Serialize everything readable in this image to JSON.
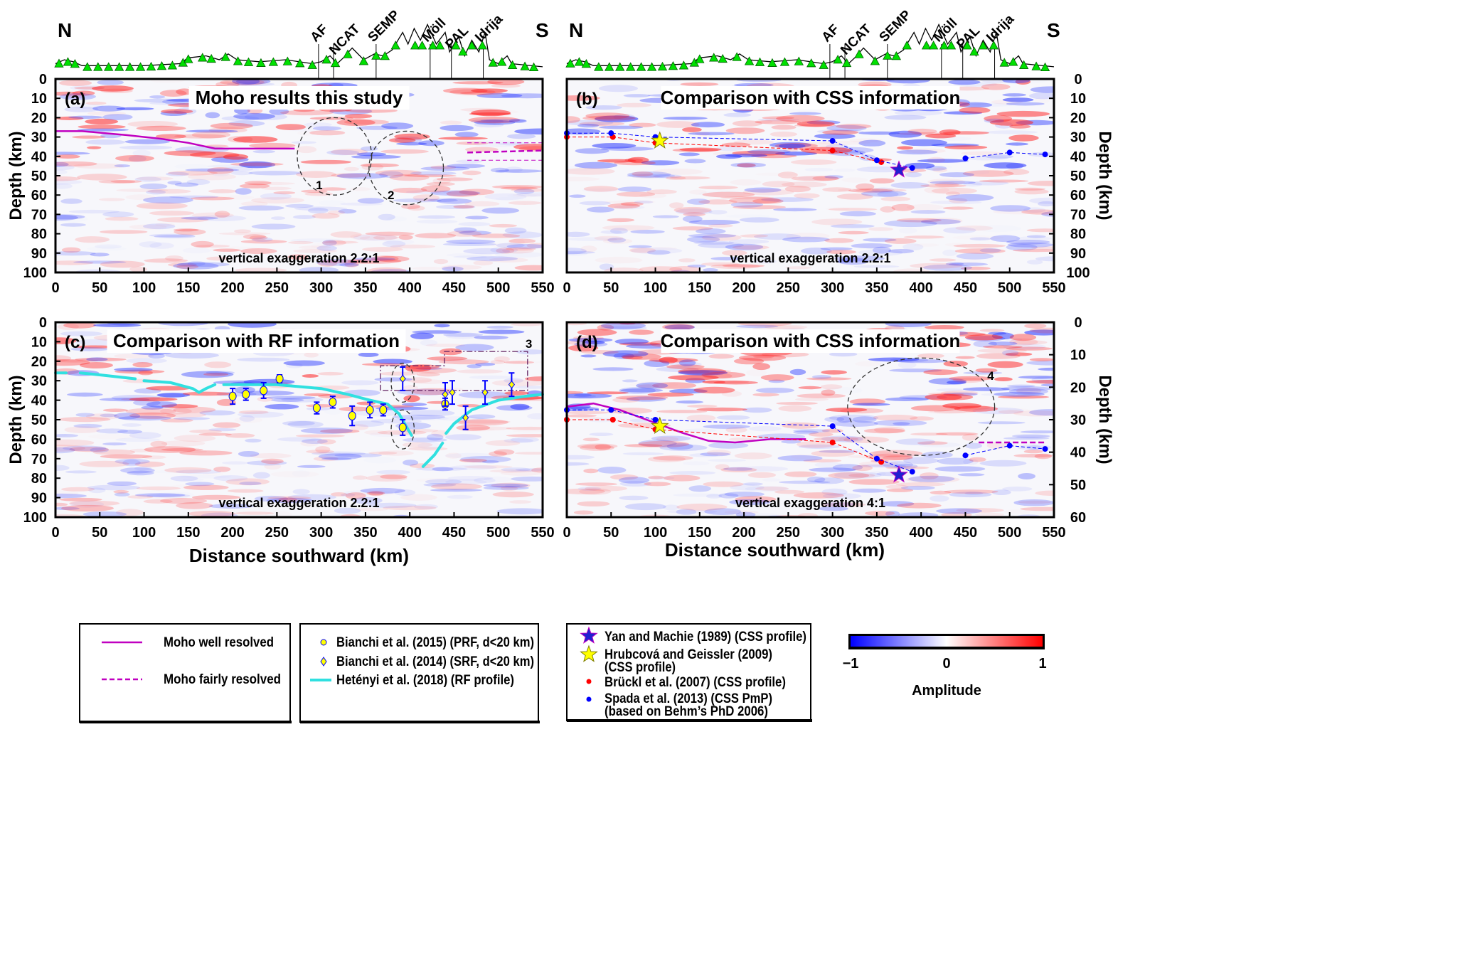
{
  "colors": {
    "moho": "#c000c0",
    "hetenyi": "#30e0e0",
    "bruckl": "#ff0000",
    "spada": "#0000ff",
    "yan": "#2020d0",
    "hrubcova": "#ffff00",
    "bianchi_fill": "#ffff00",
    "errorbar": "#0000ff",
    "station": "#00e000"
  },
  "profile": {
    "north_label": "N",
    "south_label": "S",
    "geology_labels": [
      {
        "label": "AF",
        "km": 297
      },
      {
        "label": "NCAT",
        "km": 314
      },
      {
        "label": "SEMP",
        "km": 362
      },
      {
        "label": "Möll",
        "km": 423
      },
      {
        "label": "PAL",
        "km": 447
      },
      {
        "label": "Idrija",
        "km": 483
      }
    ],
    "elevation_km_rel": [
      [
        0,
        0.1
      ],
      [
        10,
        0.2
      ],
      [
        20,
        0.15
      ],
      [
        30,
        0.05
      ],
      [
        60,
        0.05
      ],
      [
        100,
        0.05
      ],
      [
        140,
        0.1
      ],
      [
        150,
        0.25
      ],
      [
        170,
        0.3
      ],
      [
        185,
        0.2
      ],
      [
        195,
        0.35
      ],
      [
        205,
        0.2
      ],
      [
        230,
        0.15
      ],
      [
        260,
        0.2
      ],
      [
        290,
        0.1
      ],
      [
        300,
        0.15
      ],
      [
        310,
        0.3
      ],
      [
        318,
        0.1
      ],
      [
        325,
        0.25
      ],
      [
        335,
        0.5
      ],
      [
        348,
        0.2
      ],
      [
        360,
        0.35
      ],
      [
        370,
        0.3
      ],
      [
        380,
        0.45
      ],
      [
        392,
        0.9
      ],
      [
        398,
        0.6
      ],
      [
        405,
        1.0
      ],
      [
        412,
        0.7
      ],
      [
        420,
        1.1
      ],
      [
        430,
        0.6
      ],
      [
        440,
        0.9
      ],
      [
        445,
        0.4
      ],
      [
        455,
        0.8
      ],
      [
        462,
        0.3
      ],
      [
        470,
        0.7
      ],
      [
        478,
        0.4
      ],
      [
        485,
        0.9
      ],
      [
        490,
        0.2
      ],
      [
        500,
        0.1
      ],
      [
        510,
        0.3
      ],
      [
        515,
        0.1
      ],
      [
        550,
        0.02
      ]
    ],
    "stations_km": [
      4,
      14,
      22,
      36,
      48,
      60,
      72,
      84,
      96,
      108,
      120,
      132,
      144,
      150,
      166,
      176,
      192,
      206,
      218,
      232,
      246,
      262,
      276,
      290,
      306,
      316,
      330,
      348,
      362,
      372,
      384,
      406,
      414,
      426,
      434,
      452,
      460,
      470,
      482,
      494,
      504,
      516,
      530,
      540
    ]
  },
  "chart_data": [
    {
      "panel": "(a)",
      "type": "line",
      "title": "Moho results this study",
      "ylabel": "Depth (km)",
      "xlim": [
        0,
        550
      ],
      "ylim": [
        100,
        0
      ],
      "xticks": [
        0,
        50,
        100,
        150,
        200,
        250,
        300,
        350,
        400,
        450,
        500,
        550
      ],
      "yticks": [
        0,
        10,
        20,
        30,
        40,
        50,
        60,
        70,
        80,
        90,
        100
      ],
      "annotation": "vertical exaggeration 2.2:1",
      "moho_well_resolved": [
        [
          0,
          27
        ],
        [
          30,
          27
        ],
        [
          80,
          29
        ],
        [
          120,
          31
        ],
        [
          150,
          33
        ],
        [
          180,
          36
        ],
        [
          210,
          36
        ],
        [
          250,
          36
        ],
        [
          270,
          36
        ]
      ],
      "moho_fairly_resolved": [
        [
          465,
          38
        ],
        [
          550,
          37
        ]
      ],
      "moho_fairly_resolved_thin": [
        [
          [
            465,
            33
          ],
          [
            550,
            33
          ]
        ],
        [
          [
            465,
            42
          ],
          [
            550,
            42
          ]
        ]
      ],
      "regions": [
        {
          "label": "1",
          "center": [
            315,
            40
          ],
          "radius_km": [
            42,
            20
          ]
        },
        {
          "label": "2",
          "center": [
            396,
            46
          ],
          "radius_km": [
            42,
            19
          ]
        }
      ]
    },
    {
      "panel": "(b)",
      "type": "scatter",
      "title": "Comparison with CSS information",
      "ylabel": "Depth (km)",
      "xlim": [
        0,
        550
      ],
      "ylim": [
        100,
        0
      ],
      "xticks": [
        0,
        50,
        100,
        150,
        200,
        250,
        300,
        350,
        400,
        450,
        500,
        550
      ],
      "yticks": [
        0,
        10,
        20,
        30,
        40,
        50,
        60,
        70,
        80,
        90,
        100
      ],
      "annotation": "vertical exaggeration 2.2:1",
      "bruckl": [
        [
          0,
          30
        ],
        [
          52,
          30
        ],
        [
          100,
          33
        ],
        [
          300,
          37
        ],
        [
          355,
          43
        ]
      ],
      "spada": [
        [
          [
            0,
            28
          ],
          [
            50,
            28
          ],
          [
            100,
            30
          ],
          [
            300,
            32
          ],
          [
            350,
            42
          ],
          [
            390,
            46
          ]
        ],
        [
          [
            450,
            41
          ],
          [
            500,
            38
          ],
          [
            540,
            39
          ]
        ]
      ],
      "yan": [
        375,
        47
      ],
      "hrubcova": [
        105,
        32
      ]
    },
    {
      "panel": "(c)",
      "type": "scatter",
      "title": "Comparison with RF information",
      "ylabel": "Depth (km)",
      "xlabel": "Distance southward (km)",
      "xlim": [
        0,
        550
      ],
      "ylim": [
        100,
        0
      ],
      "xticks": [
        0,
        50,
        100,
        150,
        200,
        250,
        300,
        350,
        400,
        450,
        500,
        550
      ],
      "yticks": [
        0,
        10,
        20,
        30,
        40,
        50,
        60,
        70,
        80,
        90,
        100
      ],
      "annotation": "vertical exaggeration 2.2:1",
      "bianchi_2015_prf": [
        [
          200,
          38,
          4
        ],
        [
          215,
          37,
          3
        ],
        [
          235,
          35,
          4
        ],
        [
          253,
          29,
          2
        ],
        [
          295,
          44,
          3
        ],
        [
          313,
          41,
          3
        ],
        [
          335,
          48,
          5
        ],
        [
          355,
          45,
          4
        ],
        [
          370,
          45,
          3
        ],
        [
          392,
          54,
          4
        ],
        [
          440,
          42,
          3
        ]
      ],
      "bianchi_2014_srf": [
        [
          392,
          29,
          6
        ],
        [
          440,
          37,
          6
        ],
        [
          448,
          36,
          6
        ],
        [
          463,
          49,
          6
        ],
        [
          485,
          36,
          6
        ],
        [
          515,
          32,
          6
        ]
      ],
      "hetenyi": [
        [
          [
            0,
            26
          ],
          [
            12,
            26
          ]
        ],
        [
          [
            28,
            26
          ],
          [
            50,
            27
          ],
          [
            90,
            29
          ]
        ],
        [
          [
            100,
            30
          ],
          [
            130,
            31
          ],
          [
            155,
            34
          ],
          [
            162,
            36
          ],
          [
            170,
            34
          ],
          [
            180,
            32
          ]
        ],
        [
          [
            190,
            32
          ],
          [
            250,
            32
          ],
          [
            300,
            34
          ],
          [
            330,
            37
          ],
          [
            355,
            40
          ],
          [
            375,
            42
          ],
          [
            388,
            47
          ],
          [
            398,
            55
          ],
          [
            402,
            58
          ]
        ],
        [
          [
            415,
            74
          ],
          [
            428,
            68
          ],
          [
            437,
            62
          ]
        ],
        [
          [
            441,
            57
          ],
          [
            450,
            52
          ],
          [
            470,
            45
          ],
          [
            500,
            40
          ],
          [
            530,
            38
          ],
          [
            550,
            37
          ]
        ]
      ],
      "regions": [
        {
          "label": "",
          "center": [
            392,
            31
          ],
          "radius_km": [
            13,
            10
          ]
        },
        {
          "label": "",
          "center": [
            392,
            55
          ],
          "radius_km": [
            13,
            10
          ]
        }
      ],
      "box": {
        "label": "3",
        "x": [
          367,
          533
        ],
        "y": [
          15,
          35
        ]
      }
    },
    {
      "panel": "(d)",
      "type": "line",
      "title": "Comparison with CSS information",
      "ylabel": "Depth (km)",
      "xlabel": "Distance southward (km)",
      "xlim": [
        0,
        550
      ],
      "ylim": [
        60,
        0
      ],
      "xticks": [
        0,
        50,
        100,
        150,
        200,
        250,
        300,
        350,
        400,
        450,
        500,
        550
      ],
      "yticks": [
        0,
        10,
        20,
        30,
        40,
        50,
        60
      ],
      "annotation": "vertical exaggeration 4:1",
      "moho_well_resolved": [
        [
          0,
          26
        ],
        [
          30,
          25
        ],
        [
          60,
          27
        ],
        [
          100,
          31
        ],
        [
          130,
          34
        ],
        [
          160,
          36.5
        ],
        [
          190,
          37
        ],
        [
          230,
          36
        ],
        [
          270,
          36
        ]
      ],
      "moho_fairly_resolved": [
        [
          465,
          37
        ],
        [
          540,
          37
        ]
      ],
      "bruckl": [
        [
          0,
          30
        ],
        [
          52,
          30
        ],
        [
          100,
          33
        ],
        [
          300,
          37
        ],
        [
          355,
          43
        ]
      ],
      "spada": [
        [
          [
            0,
            27
          ],
          [
            50,
            27
          ],
          [
            100,
            30
          ],
          [
            300,
            32
          ],
          [
            350,
            42
          ],
          [
            390,
            46
          ]
        ],
        [
          [
            450,
            41
          ],
          [
            500,
            38
          ],
          [
            540,
            39
          ]
        ]
      ],
      "yan": [
        375,
        47
      ],
      "hrubcova": [
        105,
        32
      ],
      "regions": [
        {
          "label": "4",
          "center": [
            400,
            26
          ],
          "radius_km": [
            83,
            15
          ]
        }
      ]
    }
  ],
  "legend": {
    "moho_well": "Moho well resolved",
    "moho_fair": "Moho fairly resolved",
    "bianchi2015": "Bianchi et al. (2015) (PRF, d<20 km)",
    "bianchi2014": "Bianchi et al. (2014) (SRF, d<20 km)",
    "hetenyi": "Hetényi et al. (2018) (RF profile)",
    "yan": "Yan and Machie (1989) (CSS profile)",
    "hrubcova_1": "Hrubcová and Geissler (2009)",
    "hrubcova_2": "(CSS profile)",
    "bruckl": "Brückl et al. (2007) (CSS profile)",
    "spada_1": "Spada et al. (2013) (CSS PmP)",
    "spada_2": "(based on Behm’s PhD 2006)"
  },
  "colorbar": {
    "label": "Amplitude",
    "min": "−1",
    "mid": "0",
    "max": "1",
    "colors": [
      "#0000ff",
      "#ffffff",
      "#ff0000"
    ]
  }
}
